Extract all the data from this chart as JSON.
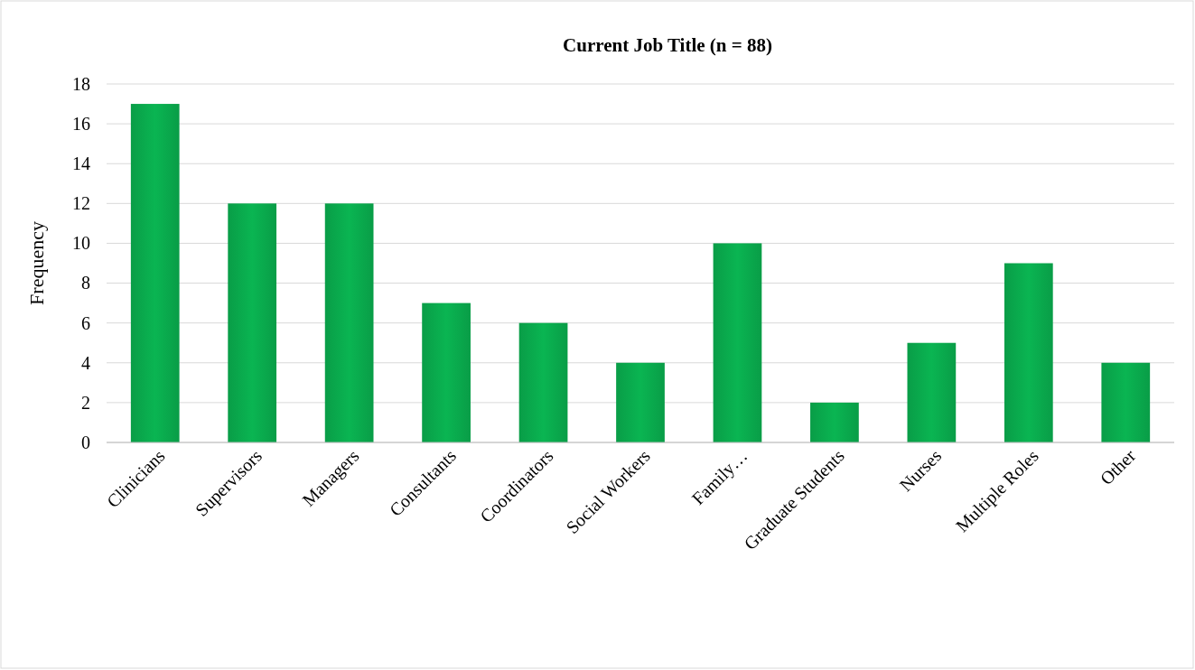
{
  "chart_data": {
    "type": "bar",
    "title": "Current Job Title (n = 88)",
    "ylabel": "Frequency",
    "categories": [
      "Clinicians",
      "Supervisors",
      "Managers",
      "Consultants",
      "Coordinators",
      "Social Workers",
      "Family…",
      "Graduate Students",
      "Nurses",
      "Multiple Roles",
      "Other"
    ],
    "values": [
      17,
      12,
      12,
      7,
      6,
      4,
      10,
      2,
      5,
      9,
      4
    ],
    "color": "#0ab552",
    "ylim": [
      0,
      18
    ],
    "yticks": [
      0,
      2,
      4,
      6,
      8,
      10,
      12,
      14,
      16,
      18
    ],
    "grid": "y"
  }
}
